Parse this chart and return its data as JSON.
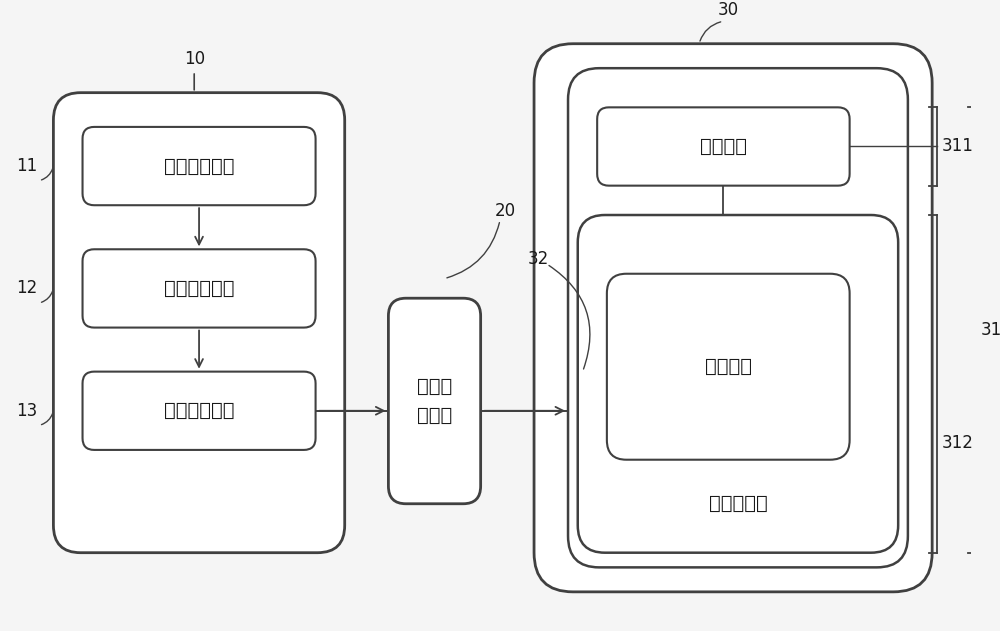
{
  "bg_color": "#f5f5f5",
  "line_color": "#404040",
  "text_color": "#1a1a1a",
  "font_size_main": 14,
  "font_size_label": 12,
  "labels": {
    "box11": "物联感知模块",
    "box12": "互联传输模块",
    "box13": "数据分析模块",
    "box20_line1": "虚拟建",
    "box20_line2": "模单元",
    "box_camera": "摄像组件",
    "box_sw": "软件模块",
    "box_img": "图像处理器",
    "num10": "10",
    "num11": "11",
    "num12": "12",
    "num13": "13",
    "num20": "20",
    "num30": "30",
    "num31": "31",
    "num311": "311",
    "num312": "312",
    "num32": "32"
  }
}
